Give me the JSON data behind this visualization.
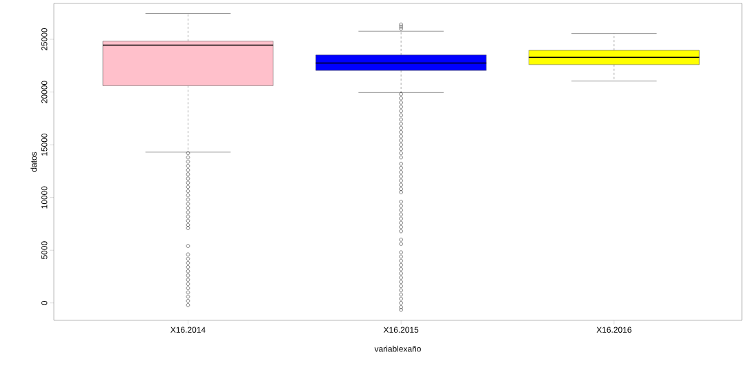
{
  "chart_data": {
    "type": "box",
    "xlabel": "variablexaño",
    "ylabel": "datos",
    "categories": [
      "X16.2014",
      "X16.2015",
      "X16.2016"
    ],
    "colors": [
      "#ffc0cb",
      "#0000ff",
      "#ffff00"
    ],
    "boxes": [
      {
        "low": 14300,
        "q1": 20600,
        "median": 24450,
        "q3": 24820,
        "high": 27450,
        "outliers": [
          14200,
          13800,
          13400,
          13000,
          12600,
          12200,
          11800,
          11400,
          11000,
          10600,
          10200,
          9800,
          9400,
          9000,
          8600,
          8200,
          7800,
          7400,
          7100,
          5400,
          4600,
          4200,
          3800,
          3400,
          3000,
          2600,
          2200,
          1800,
          1400,
          1000,
          600,
          200,
          -200
        ]
      },
      {
        "low": 19950,
        "q1": 22050,
        "median": 22750,
        "q3": 23510,
        "high": 25770,
        "outliers": [
          26400,
          26200,
          26000,
          19800,
          19400,
          19000,
          18600,
          18200,
          17800,
          17400,
          17000,
          16600,
          16200,
          15800,
          15400,
          15000,
          14600,
          14200,
          13800,
          13200,
          12800,
          12400,
          12000,
          11600,
          11200,
          10800,
          10500,
          9600,
          9200,
          8800,
          8400,
          8000,
          7600,
          7200,
          6800,
          6000,
          5600,
          4800,
          4400,
          4000,
          3600,
          3200,
          2800,
          2400,
          2000,
          1600,
          1200,
          800,
          400,
          0,
          -400,
          -650
        ]
      },
      {
        "low": 21040,
        "q1": 22600,
        "median": 23290,
        "q3": 23950,
        "high": 25550
      }
    ],
    "ylim": [
      -1650,
      28400
    ],
    "yticks": [
      0,
      5000,
      10000,
      15000,
      20000,
      25000
    ]
  }
}
